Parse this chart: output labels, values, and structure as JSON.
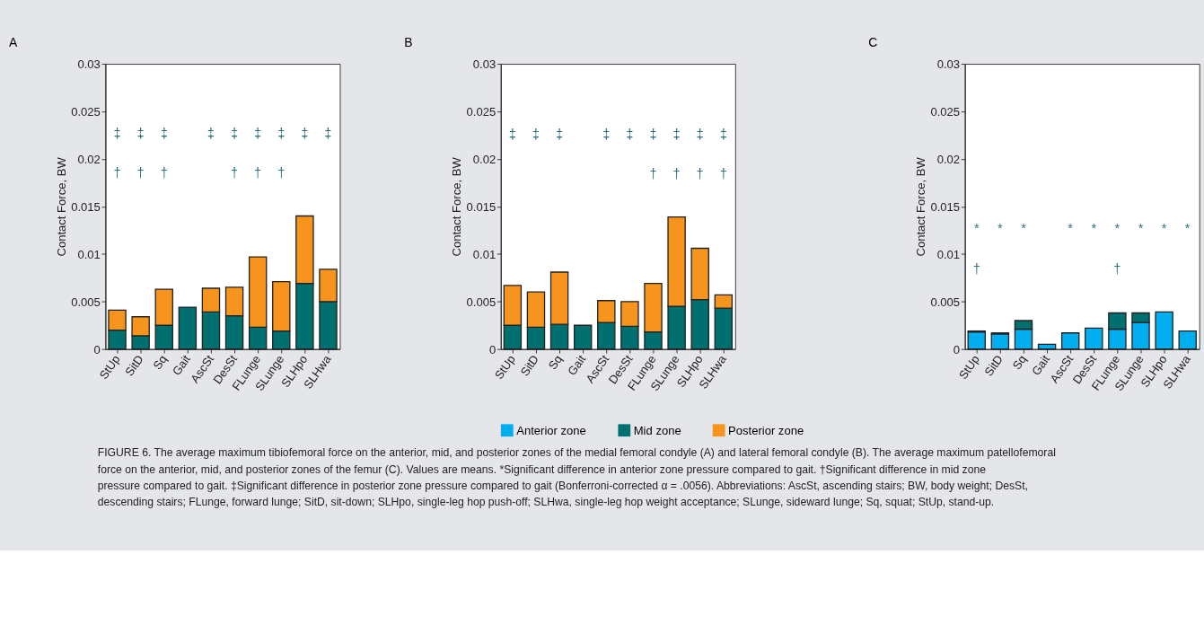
{
  "chart_data": [
    {
      "type": "bar",
      "title": "A",
      "ylabel": "Contact Force, BW",
      "stacked": true,
      "grid": false,
      "legend": "bottom",
      "categories": [
        "StUp",
        "SitD",
        "Sq",
        "Gait",
        "AscSt",
        "DesSt",
        "FLunge",
        "SLunge",
        "SLHpo",
        "SLHwa"
      ],
      "ylim": [
        0,
        0.03
      ],
      "yticks": [
        0,
        0.005,
        0.01,
        0.015,
        0.02,
        0.025,
        0.03
      ],
      "series": [
        {
          "name": "Mid zone",
          "color": "#006f6f",
          "values": [
            0.002,
            0.0014,
            0.0025,
            0.0044,
            0.0039,
            0.0035,
            0.0023,
            0.0019,
            0.0069,
            0.005
          ]
        },
        {
          "name": "Posterior zone",
          "color": "#f7941d",
          "values": [
            0.0021,
            0.002,
            0.0038,
            null,
            0.0025,
            0.003,
            0.0074,
            0.0052,
            0.0071,
            0.0034
          ]
        }
      ],
      "annotations": [
        "‡  ‡  ‡     ‡  ‡  ‡  ‡  ‡  ‡",
        "†  †  †        †  †  †"
      ]
    },
    {
      "type": "bar",
      "title": "B",
      "ylabel": "Contact Force, BW",
      "stacked": true,
      "grid": false,
      "legend": "bottom",
      "categories": [
        "StUp",
        "SitD",
        "Sq",
        "Gait",
        "AscSt",
        "DesSt",
        "FLunge",
        "SLunge",
        "SLHpo",
        "SLHwa"
      ],
      "ylim": [
        0,
        0.03
      ],
      "yticks": [
        0,
        0.005,
        0.01,
        0.015,
        0.02,
        0.025,
        0.03
      ],
      "series": [
        {
          "name": "Mid zone",
          "color": "#006f6f",
          "values": [
            0.0025,
            0.0023,
            0.0026,
            0.0025,
            0.0028,
            0.0024,
            0.0018,
            0.0045,
            0.0052,
            0.0043
          ]
        },
        {
          "name": "Posterior zone",
          "color": "#f7941d",
          "values": [
            0.0042,
            0.0037,
            0.0055,
            null,
            0.0023,
            0.0026,
            0.0051,
            0.0094,
            0.0054,
            0.0014
          ]
        }
      ],
      "annotations": [
        "‡  ‡  ‡     ‡  ‡  ‡  ‡  ‡  ‡",
        "                  †  †  †  †"
      ]
    },
    {
      "type": "bar",
      "title": "C",
      "ylabel": "Contact Force, BW",
      "stacked": true,
      "grid": false,
      "legend": "bottom",
      "categories": [
        "StUp",
        "SitD",
        "Sq",
        "Gait",
        "AscSt",
        "DesSt",
        "FLunge",
        "SLunge",
        "SLHpo",
        "SLHwa"
      ],
      "ylim": [
        0,
        0.03
      ],
      "yticks": [
        0,
        0.005,
        0.01,
        0.015,
        0.02,
        0.025,
        0.03
      ],
      "series": [
        {
          "name": "Anterior zone",
          "color": "#00adef",
          "values": [
            0.0018,
            0.0016,
            0.0021,
            0.0005,
            0.0017,
            0.0022,
            0.0021,
            0.0028,
            0.0039,
            0.0019
          ]
        },
        {
          "name": "Mid zone",
          "color": "#006f6f",
          "values": [
            0.0001,
            0.0001,
            0.0009,
            null,
            null,
            null,
            0.0017,
            0.001,
            null,
            null
          ]
        }
      ],
      "annotations": [
        "*  *  *     *  *  *  *  *  *",
        "†                 †",
        "FIGURE 6. The average maximum tibiofemoral force on the anterior, mid, and posterior zones of the medial femoral condyle (A) and lateral femoral condyle (B). The average maximum patellofemoral force on the anterior, mid, and posterior zones of the femur (C). Values are means. *Significant difference in anterior zone pressure compared to gait. †Significant difference in mid zone pressure compared to gait. ‡Significant difference in posterior zone pressure compared to gait (Bonferroni-corrected α = .0056). Abbreviations: AscSt, ascending stairs; BW, body weight; DesSt, descending stairs; FLunge, forward lunge; SitD, sit-down; SLHpo, single-leg hop push-off; SLHwa, single-leg hop weight acceptance; SLunge, sideward lunge; Sq, squat; StUp, stand-up."
      ]
    }
  ]
}
